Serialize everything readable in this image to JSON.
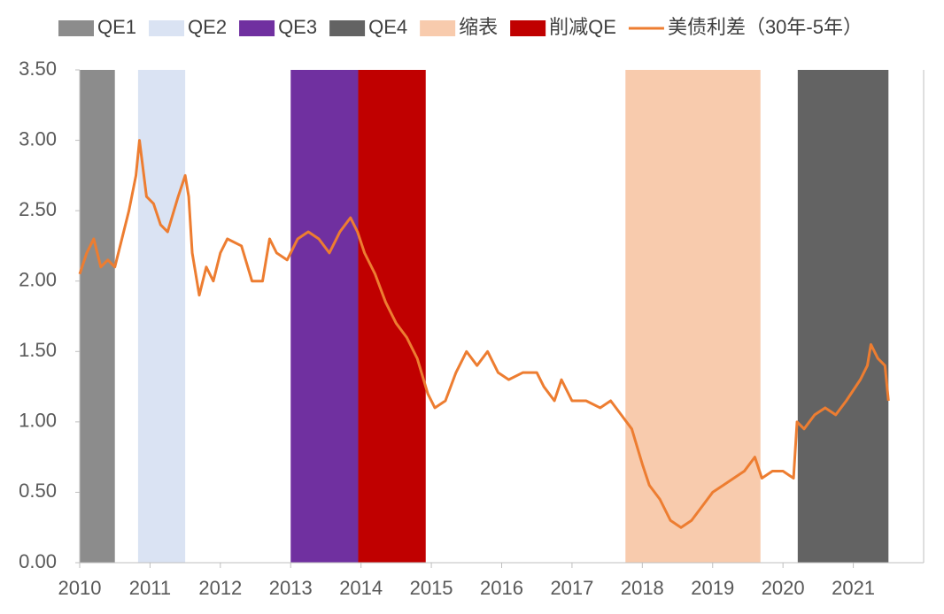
{
  "chart_data": {
    "type": "line",
    "legend": "top",
    "xlim": [
      2010,
      2022
    ],
    "xticks": [
      2010,
      2011,
      2012,
      2013,
      2014,
      2015,
      2016,
      2017,
      2018,
      2019,
      2020,
      2021
    ],
    "ylim": [
      0,
      3.5
    ],
    "yticks": [
      {
        "value": 0,
        "label": "0.00"
      },
      {
        "value": 0.5,
        "label": "0.50"
      },
      {
        "value": 1,
        "label": "1.00"
      },
      {
        "value": 1.5,
        "label": "1.50"
      },
      {
        "value": 2,
        "label": "2.00"
      },
      {
        "value": 2.5,
        "label": "2.50"
      },
      {
        "value": 3,
        "label": "3.00"
      },
      {
        "value": 3.5,
        "label": "3.50"
      }
    ],
    "bands": [
      {
        "name": "QE1",
        "color": "#8c8c8c",
        "start": 2010.0,
        "end": 2010.5
      },
      {
        "name": "QE2",
        "color": "#dae3f3",
        "start": 2010.83,
        "end": 2011.5
      },
      {
        "name": "QE3",
        "color": "#7030a0",
        "start": 2013.0,
        "end": 2013.96
      },
      {
        "name": "QE4",
        "color": "#636363",
        "start": 2020.21,
        "end": 2021.5
      },
      {
        "name": "缩表",
        "color": "#f8cbad",
        "start": 2017.76,
        "end": 2019.68
      },
      {
        "name": "削减QE",
        "color": "#c00000",
        "start": 2013.96,
        "end": 2014.92
      }
    ],
    "x": [
      2010.0,
      2010.1,
      2010.2,
      2010.3,
      2010.4,
      2010.5,
      2010.6,
      2010.7,
      2010.8,
      2010.85,
      2010.95,
      2011.05,
      2011.15,
      2011.25,
      2011.4,
      2011.5,
      2011.55,
      2011.6,
      2011.7,
      2011.8,
      2011.9,
      2012.0,
      2012.1,
      2012.3,
      2012.45,
      2012.6,
      2012.7,
      2012.8,
      2012.95,
      2013.1,
      2013.25,
      2013.4,
      2013.55,
      2013.7,
      2013.85,
      2013.95,
      2014.05,
      2014.2,
      2014.35,
      2014.5,
      2014.65,
      2014.8,
      2014.95,
      2015.05,
      2015.2,
      2015.35,
      2015.5,
      2015.65,
      2015.8,
      2015.95,
      2016.1,
      2016.3,
      2016.5,
      2016.6,
      2016.75,
      2016.85,
      2017.0,
      2017.2,
      2017.4,
      2017.55,
      2017.7,
      2017.85,
      2018.0,
      2018.1,
      2018.25,
      2018.4,
      2018.55,
      2018.7,
      2018.85,
      2019.0,
      2019.15,
      2019.3,
      2019.45,
      2019.6,
      2019.7,
      2019.85,
      2020.0,
      2020.15,
      2020.2,
      2020.3,
      2020.45,
      2020.6,
      2020.75,
      2020.9,
      2021.1,
      2021.2,
      2021.25,
      2021.35,
      2021.45,
      2021.5
    ],
    "series": [
      {
        "name": "美债利差（30年-5年）",
        "color": "#ed7d31",
        "values": [
          2.05,
          2.2,
          2.3,
          2.1,
          2.15,
          2.1,
          2.3,
          2.5,
          2.75,
          3.0,
          2.6,
          2.55,
          2.4,
          2.35,
          2.6,
          2.75,
          2.6,
          2.2,
          1.9,
          2.1,
          2.0,
          2.2,
          2.3,
          2.25,
          2.0,
          2.0,
          2.3,
          2.2,
          2.15,
          2.3,
          2.35,
          2.3,
          2.2,
          2.35,
          2.45,
          2.35,
          2.2,
          2.05,
          1.85,
          1.7,
          1.6,
          1.45,
          1.2,
          1.1,
          1.15,
          1.35,
          1.5,
          1.4,
          1.5,
          1.35,
          1.3,
          1.35,
          1.35,
          1.25,
          1.15,
          1.3,
          1.15,
          1.15,
          1.1,
          1.15,
          1.05,
          0.95,
          0.7,
          0.55,
          0.45,
          0.3,
          0.25,
          0.3,
          0.4,
          0.5,
          0.55,
          0.6,
          0.65,
          0.75,
          0.6,
          0.65,
          0.65,
          0.6,
          1.0,
          0.95,
          1.05,
          1.1,
          1.05,
          1.15,
          1.3,
          1.4,
          1.55,
          1.45,
          1.4,
          1.15
        ]
      }
    ]
  }
}
